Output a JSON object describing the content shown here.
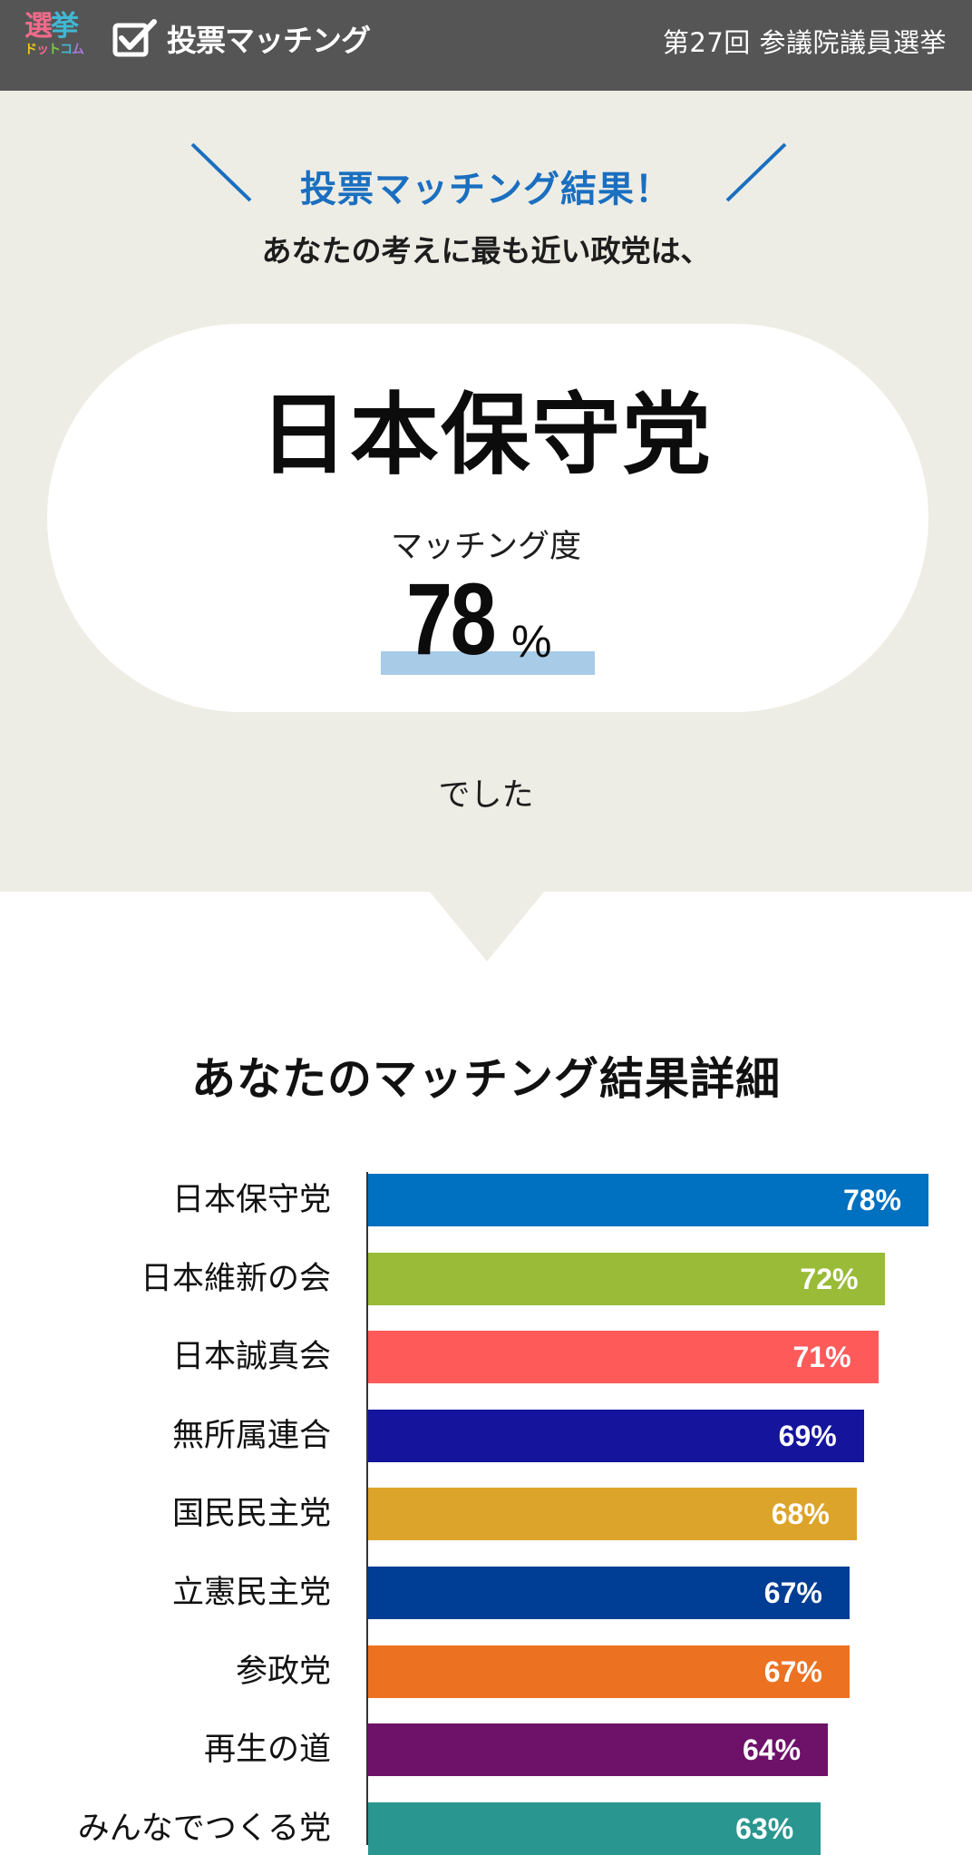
{
  "header": {
    "site_logo_line1_a": "選",
    "site_logo_line1_b": "挙",
    "site_logo_line2": [
      "ド",
      "ッ",
      "ト",
      "コ",
      "ム"
    ],
    "app_title": "投票マッチング",
    "election_name": "第27回 参議院議員選挙"
  },
  "result": {
    "headline": "投票マッチング結果！",
    "lead": "あなたの考えに最も近い政党は、",
    "party": "日本保守党",
    "score_label": "マッチング度",
    "score_value": "78",
    "score_unit": "%",
    "score_fraction": 0.78,
    "tail": "でした"
  },
  "detail": {
    "title": "あなたのマッチング結果詳細"
  },
  "colors": {
    "header_bg": "#555555",
    "result_bg": "#eeede5",
    "accent_blue": "#1a6fc0",
    "score_highlight": "#a8cbe8"
  },
  "chart_data": {
    "type": "bar",
    "title": "あなたのマッチング結果詳細",
    "categories": [
      "日本保守党",
      "日本維新の会",
      "日本誠真会",
      "無所属連合",
      "国民民主党",
      "立憲民主党",
      "参政党",
      "再生の道",
      "みんなでつくる党"
    ],
    "values": [
      78,
      72,
      71,
      69,
      68,
      67,
      67,
      64,
      63
    ],
    "labels": [
      "78%",
      "72%",
      "71%",
      "69%",
      "68%",
      "67%",
      "67%",
      "64%",
      "63%"
    ],
    "colors": [
      "#0070c0",
      "#99bb38",
      "#ff5a5a",
      "#14149c",
      "#dca42a",
      "#003d94",
      "#ec7222",
      "#6e1169",
      "#29968f"
    ],
    "xlim": [
      0,
      78
    ],
    "orientation": "horizontal"
  }
}
